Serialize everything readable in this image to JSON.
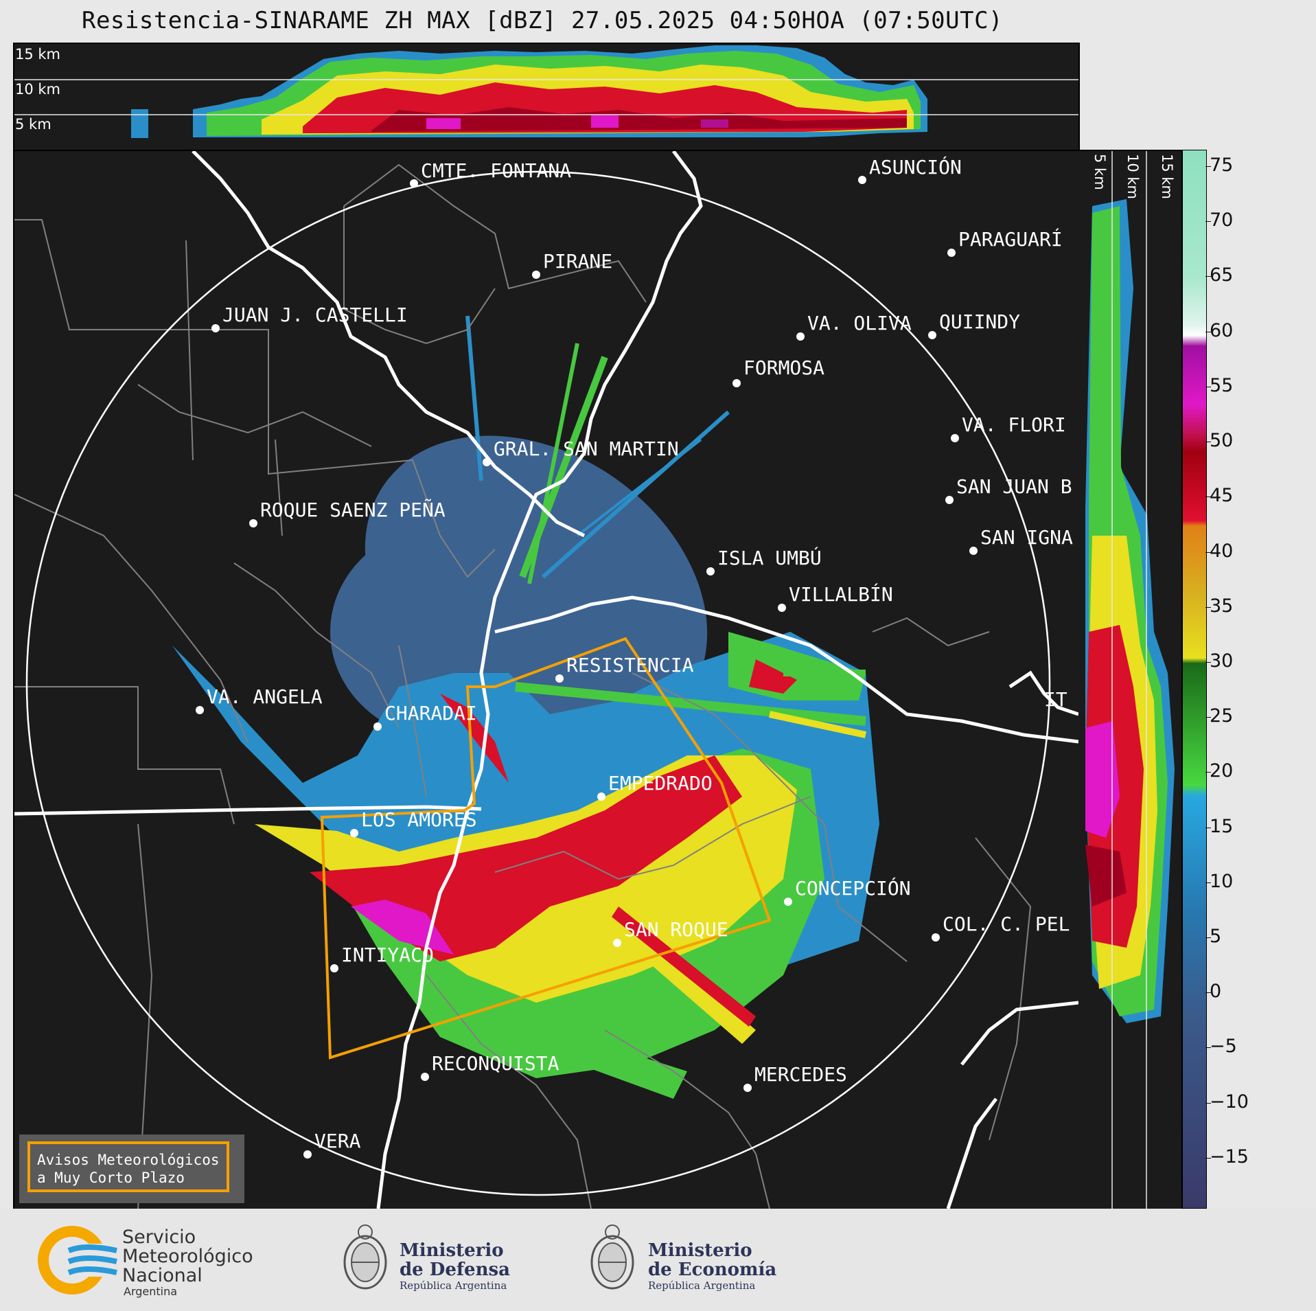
{
  "header": {
    "title": "Resistencia-SINARAME ZH MAX [dBZ] 27.05.2025 04:50HOA (07:50UTC)"
  },
  "top_panel": {
    "altitudes": [
      "15 km",
      "10 km",
      "5 km"
    ]
  },
  "side_panel": {
    "altitudes": [
      "5 km",
      "10 km",
      "15 km"
    ]
  },
  "colorbar": {
    "unit": "dBZ",
    "ticks": [
      "75",
      "70",
      "65",
      "60",
      "55",
      "50",
      "45",
      "40",
      "35",
      "30",
      "25",
      "20",
      "15",
      "10",
      "5",
      "0",
      "−5",
      "−10",
      "−15"
    ],
    "min": -19.5,
    "max": 76.5
  },
  "map": {
    "cities": [
      {
        "name": "CMTE. FONTANA"
      },
      {
        "name": "ASUNCIÓN"
      },
      {
        "name": "PARAGUARÍ"
      },
      {
        "name": "PIRANE"
      },
      {
        "name": "JUAN J. CASTELLI"
      },
      {
        "name": "VA. OLIVA"
      },
      {
        "name": "QUIINDY"
      },
      {
        "name": "FORMOSA"
      },
      {
        "name": "GRAL. SAN MARTIN"
      },
      {
        "name": "VA. FLORI"
      },
      {
        "name": "SAN JUAN B"
      },
      {
        "name": "ROQUE SAENZ PEÑA"
      },
      {
        "name": "SAN IGNA"
      },
      {
        "name": "ISLA UMBÚ"
      },
      {
        "name": "VILLALBÍN"
      },
      {
        "name": "RESISTENCIA"
      },
      {
        "name": "VA. ANGELA"
      },
      {
        "name": "CHARADAI"
      },
      {
        "name": "EMPEDRADO"
      },
      {
        "name": "LOS AMORES"
      },
      {
        "name": "CONCEPCIÓN"
      },
      {
        "name": "SAN ROQUE"
      },
      {
        "name": "COL. C. PEL"
      },
      {
        "name": "INTIYACO"
      },
      {
        "name": "RECONQUISTA"
      },
      {
        "name": "MERCEDES"
      },
      {
        "name": "VERA"
      },
      {
        "name": "IT"
      }
    ]
  },
  "legend": {
    "line1": "Avisos Meteorológicos",
    "line2": "a Muy Corto Plazo"
  },
  "footer": {
    "smn": {
      "line1": "Servicio",
      "line2": "Meteorológico",
      "line3": "Nacional",
      "line4": "Argentina"
    },
    "defensa": {
      "line1": "Ministerio",
      "line2": "de Defensa",
      "line3": "República Argentina"
    },
    "economia": {
      "line1": "Ministerio",
      "line2": "de Economía",
      "line3": "República Argentina"
    }
  },
  "colors": {
    "background": "#1b1b1b",
    "boundary": "#ffffff",
    "warning_polygon": "#f5a000"
  }
}
